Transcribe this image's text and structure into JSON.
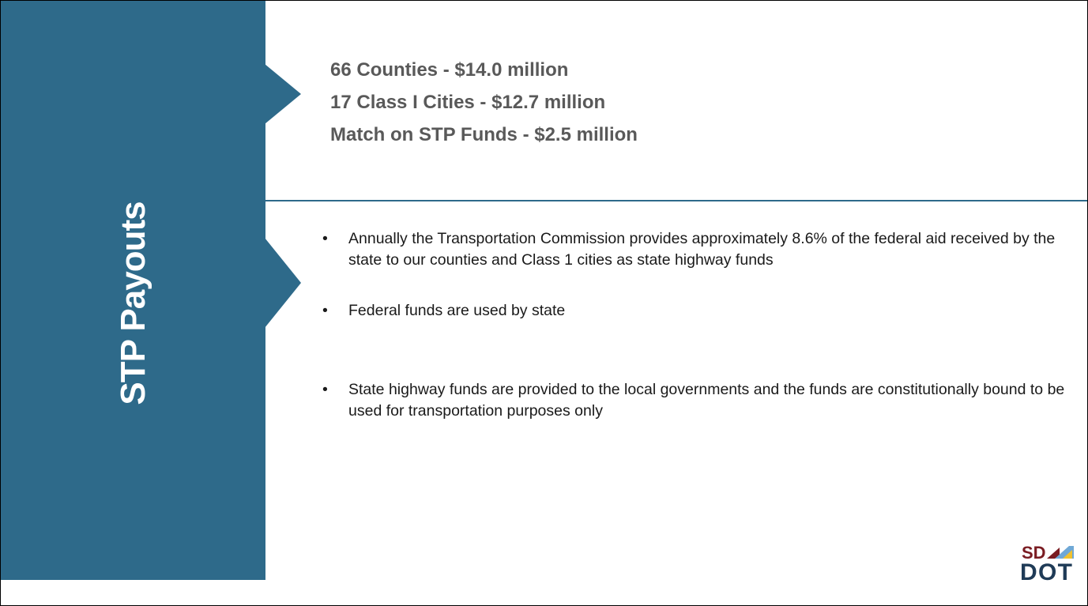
{
  "title": "STP Payouts",
  "summary": [
    "66 Counties - $14.0 million",
    "17 Class I Cities - $12.7 million",
    "Match on STP Funds - $2.5 million"
  ],
  "bullets": [
    "Annually the Transportation Commission provides approximately 8.6% of the federal aid received by the state to our counties and Class 1 cities as state highway funds",
    "Federal funds are used by state",
    "State highway funds are provided to the local governments and the funds are constitutionally bound to be used for transportation purposes only"
  ],
  "logo": {
    "top": "SD",
    "bottom": "DOT"
  }
}
